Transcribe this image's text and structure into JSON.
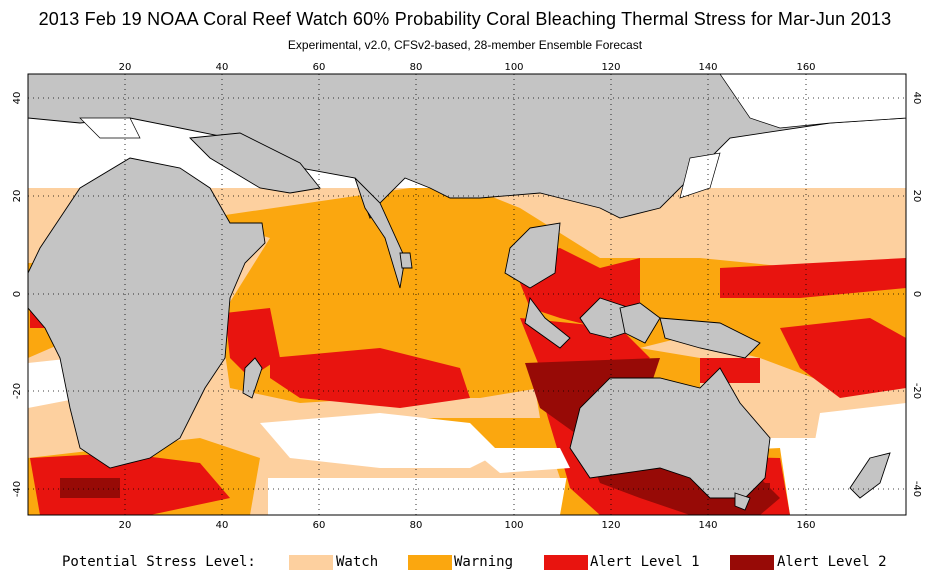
{
  "title": "2013 Feb 19 NOAA Coral Reef Watch 60% Probability Coral Bleaching Thermal Stress for Mar-Jun 2013",
  "subtitle": "Experimental, v2.0, CFSv2-based, 28-member Ensemble Forecast",
  "axes": {
    "lon_ticks": [
      "20",
      "40",
      "60",
      "80",
      "100",
      "120",
      "140",
      "160"
    ],
    "lat_ticks": [
      "40",
      "20",
      "0",
      "-20",
      "-40"
    ]
  },
  "legend": {
    "heading": "Potential Stress Level:",
    "items": [
      {
        "label": "Watch",
        "color": "#fdd09f"
      },
      {
        "label": "Warning",
        "color": "#fba70f"
      },
      {
        "label": "Alert Level 1",
        "color": "#e8140f"
      },
      {
        "label": "Alert Level 2",
        "color": "#970a06"
      }
    ]
  },
  "colors": {
    "land": "#c4c4c4",
    "ocean": "#ffffff",
    "grid": "#000000"
  }
}
